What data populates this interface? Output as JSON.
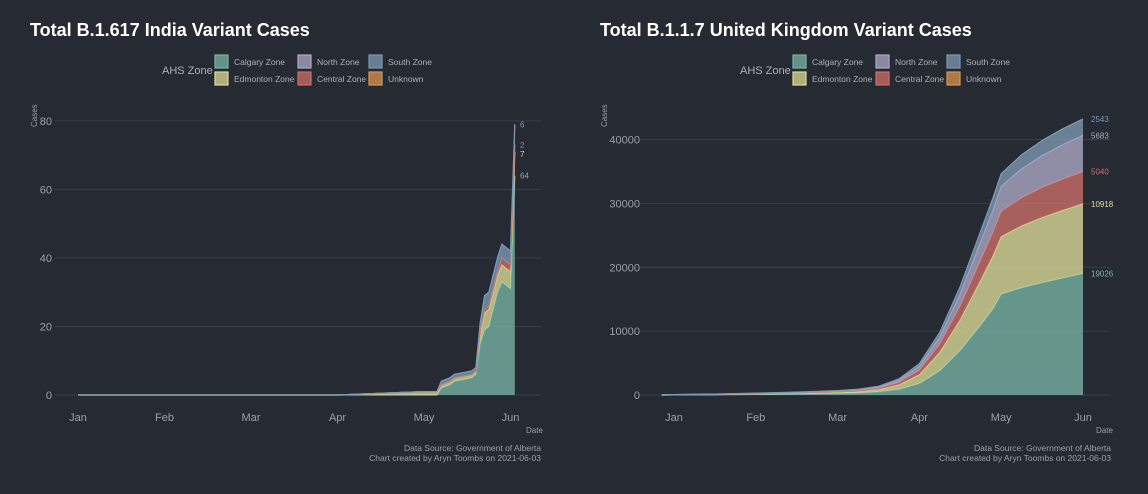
{
  "colors": {
    "background": "#262a33",
    "Calgary Zone": "#79b4a5",
    "Edmonton Zone": "#dcdc96",
    "North Zone": "#aea9c8",
    "Central Zone": "#cd6f69",
    "South Zone": "#7d99b4",
    "Unknown": "#d9954f"
  },
  "chart_data": [
    {
      "type": "area",
      "stacked": true,
      "title": "Total B.1.617 India Variant Cases",
      "legend_title": "AHS Zone",
      "legend_position": "top",
      "legend_entries": [
        "Calgary Zone",
        "North Zone",
        "South Zone",
        "Edmonton Zone",
        "Central Zone",
        "Unknown"
      ],
      "xlabel": "Date",
      "ylabel": "Cases",
      "x_ticks": [
        "Jan",
        "Feb",
        "Mar",
        "Apr",
        "May",
        "Jun"
      ],
      "y_ticks": [
        "0",
        "20",
        "40",
        "60",
        "80"
      ],
      "ylim": [
        0,
        82
      ],
      "x": [
        0,
        1,
        2,
        3,
        4,
        4.05,
        4.15,
        4.2,
        4.3,
        4.35,
        4.55,
        4.6,
        4.65,
        4.7,
        4.75,
        4.85,
        4.9,
        4.95,
        5.0,
        5.05
      ],
      "series": [
        {
          "name": "Calgary Zone",
          "values": [
            0,
            0,
            0,
            0,
            0,
            0,
            0,
            2,
            3,
            4,
            5,
            6,
            15,
            19,
            20,
            30,
            33,
            32,
            31,
            64
          ]
        },
        {
          "name": "Edmonton Zone",
          "values": [
            0,
            0,
            0,
            0,
            1,
            1,
            1,
            1,
            1,
            1,
            1,
            1,
            3,
            5,
            5,
            5,
            5,
            5,
            5,
            7
          ]
        },
        {
          "name": "Central Zone",
          "values": [
            0,
            0,
            0,
            0,
            0,
            0,
            0,
            0,
            0,
            0,
            0,
            0,
            1,
            1,
            1,
            1,
            2,
            2,
            2,
            2
          ]
        },
        {
          "name": "North Zone",
          "values": [
            0,
            0,
            0,
            0,
            0,
            0,
            0,
            0,
            0,
            0,
            0,
            0,
            0,
            0,
            0,
            0,
            0,
            0,
            0,
            0
          ]
        },
        {
          "name": "South Zone",
          "values": [
            0,
            0,
            0,
            0,
            0,
            0,
            0,
            1,
            1,
            1,
            1,
            1,
            2,
            4,
            4,
            4,
            4,
            4,
            4,
            6
          ]
        },
        {
          "name": "Unknown",
          "values": [
            0,
            0,
            0,
            0,
            0,
            0,
            0,
            0,
            0,
            0,
            0,
            0,
            0,
            0,
            0,
            0,
            0,
            0,
            0,
            0
          ]
        }
      ],
      "end_labels": [
        {
          "series": "Calgary Zone",
          "text": "64"
        },
        {
          "series": "Edmonton Zone",
          "text": "7"
        },
        {
          "series": "Central Zone",
          "text": "2"
        },
        {
          "series": "South Zone",
          "text": "6"
        }
      ],
      "source_line1": "Data Source: Government of Alberta",
      "source_line2": "Chart created by Aryn Toombs on 2021-06-03"
    },
    {
      "type": "area",
      "stacked": true,
      "title": "Total B.1.1.7 United Kingdom Variant Cases",
      "legend_title": "AHS Zone",
      "legend_position": "top",
      "legend_entries": [
        "Calgary Zone",
        "North Zone",
        "South Zone",
        "Edmonton Zone",
        "Central Zone",
        "Unknown"
      ],
      "xlabel": "Date",
      "ylabel": "Cases",
      "x_ticks": [
        "Jan",
        "Feb",
        "Mar",
        "Apr",
        "May",
        "Jun"
      ],
      "y_ticks": [
        "0",
        "10000",
        "20000",
        "30000",
        "40000"
      ],
      "ylim": [
        0,
        44000
      ],
      "x": [
        -0.15,
        0,
        0.5,
        1,
        1.5,
        2,
        2.25,
        2.5,
        2.75,
        3,
        3.25,
        3.5,
        3.75,
        3.9,
        4,
        4.25,
        4.5,
        4.75,
        5
      ],
      "series": [
        {
          "name": "Calgary Zone",
          "values": [
            0,
            20,
            50,
            100,
            160,
            250,
            320,
            500,
            900,
            1800,
            3800,
            7000,
            11000,
            13500,
            15800,
            16800,
            17600,
            18300,
            19026
          ]
        },
        {
          "name": "Edmonton Zone",
          "values": [
            0,
            10,
            30,
            70,
            110,
            160,
            220,
            350,
            700,
            1400,
            2900,
            4800,
            7000,
            8300,
            9000,
            9700,
            10200,
            10600,
            10918
          ]
        },
        {
          "name": "Central Zone",
          "values": [
            0,
            5,
            20,
            45,
            75,
            110,
            140,
            200,
            380,
            700,
            1300,
            2200,
            3200,
            3700,
            4000,
            4400,
            4700,
            4900,
            5040
          ]
        },
        {
          "name": "North Zone",
          "values": [
            0,
            5,
            20,
            40,
            60,
            90,
            120,
            180,
            320,
            600,
            1100,
            1900,
            2900,
            3500,
            3900,
            4500,
            5000,
            5400,
            5683
          ]
        },
        {
          "name": "South Zone",
          "values": [
            0,
            5,
            15,
            30,
            50,
            70,
            90,
            130,
            220,
            400,
            700,
            1100,
            1600,
            1850,
            1950,
            2200,
            2350,
            2450,
            2543
          ]
        },
        {
          "name": "Unknown",
          "values": [
            0,
            0,
            0,
            0,
            0,
            0,
            0,
            0,
            0,
            0,
            0,
            0,
            0,
            0,
            0,
            0,
            0,
            0,
            0
          ]
        }
      ],
      "end_labels": [
        {
          "series": "South Zone",
          "text": "2543"
        },
        {
          "series": "Central Zone",
          "text": "5040"
        },
        {
          "series": "North Zone",
          "text": "5683"
        },
        {
          "series": "Edmonton Zone",
          "text": "10918"
        },
        {
          "series": "Calgary Zone",
          "text": "19026"
        }
      ],
      "source_line1": "Data Source: Government of Alberta",
      "source_line2": "Chart created by Aryn Toombs on 2021-06-03"
    }
  ]
}
